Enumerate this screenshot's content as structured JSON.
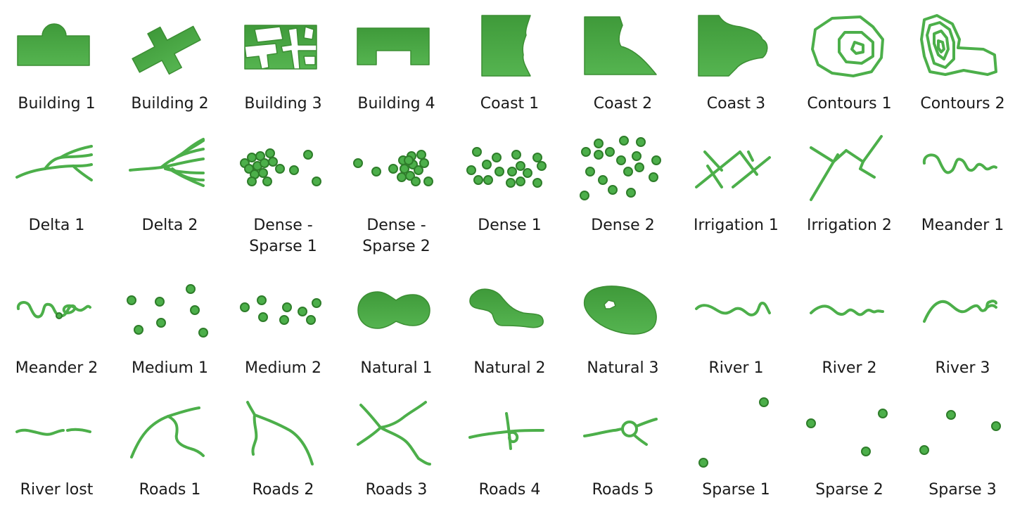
{
  "title": "",
  "colors": {
    "symbol_green": "#4caf4a",
    "symbol_green_dark": "#3b8e33",
    "label_text": "#1a1a1a"
  },
  "symbols": [
    {
      "label": "Building 1",
      "icon": "building-1-icon"
    },
    {
      "label": "Building 2",
      "icon": "building-2-icon"
    },
    {
      "label": "Building 3",
      "icon": "building-3-icon"
    },
    {
      "label": "Building 4",
      "icon": "building-4-icon"
    },
    {
      "label": "Coast 1",
      "icon": "coast-1-icon"
    },
    {
      "label": "Coast 2",
      "icon": "coast-2-icon"
    },
    {
      "label": "Coast 3",
      "icon": "coast-3-icon"
    },
    {
      "label": "Contours 1",
      "icon": "contours-1-icon"
    },
    {
      "label": "Contours 2",
      "icon": "contours-2-icon"
    },
    {
      "label": "Delta 1",
      "icon": "delta-1-icon"
    },
    {
      "label": "Delta 2",
      "icon": "delta-2-icon"
    },
    {
      "label": "Dense - Sparse 1",
      "icon": "dense-sparse-1-icon"
    },
    {
      "label": "Dense - Sparse 2",
      "icon": "dense-sparse-2-icon"
    },
    {
      "label": "Dense 1",
      "icon": "dense-1-icon"
    },
    {
      "label": "Dense 2",
      "icon": "dense-2-icon"
    },
    {
      "label": "Irrigation 1",
      "icon": "irrigation-1-icon"
    },
    {
      "label": "Irrigation 2",
      "icon": "irrigation-2-icon"
    },
    {
      "label": "Meander 1",
      "icon": "meander-1-icon"
    },
    {
      "label": "Meander 2",
      "icon": "meander-2-icon"
    },
    {
      "label": "Medium 1",
      "icon": "medium-1-icon"
    },
    {
      "label": "Medium 2",
      "icon": "medium-2-icon"
    },
    {
      "label": "Natural 1",
      "icon": "natural-1-icon"
    },
    {
      "label": "Natural 2",
      "icon": "natural-2-icon"
    },
    {
      "label": "Natural 3",
      "icon": "natural-3-icon"
    },
    {
      "label": "River 1",
      "icon": "river-1-icon"
    },
    {
      "label": "River 2",
      "icon": "river-2-icon"
    },
    {
      "label": "River 3",
      "icon": "river-3-icon"
    },
    {
      "label": "River lost",
      "icon": "river-lost-icon"
    },
    {
      "label": "Roads 1",
      "icon": "roads-1-icon"
    },
    {
      "label": "Roads 2",
      "icon": "roads-2-icon"
    },
    {
      "label": "Roads 3",
      "icon": "roads-3-icon"
    },
    {
      "label": "Roads 4",
      "icon": "roads-4-icon"
    },
    {
      "label": "Roads 5",
      "icon": "roads-5-icon"
    },
    {
      "label": "Sparse 1",
      "icon": "sparse-1-icon"
    },
    {
      "label": "Sparse 2",
      "icon": "sparse-2-icon"
    },
    {
      "label": "Sparse 3",
      "icon": "sparse-3-icon"
    }
  ]
}
